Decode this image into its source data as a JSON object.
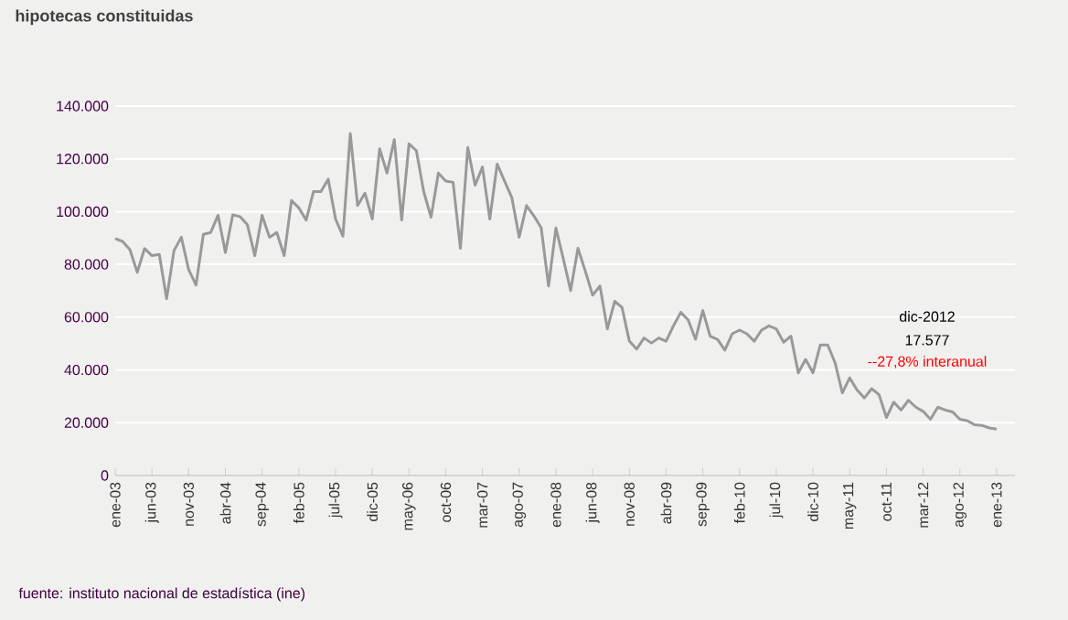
{
  "chart_data": {
    "type": "line",
    "title": "hipotecas constituidas",
    "categories": [
      "ene-03",
      null,
      null,
      null,
      null,
      "jun-03",
      null,
      null,
      null,
      null,
      "nov-03",
      null,
      null,
      null,
      null,
      "abr-04",
      null,
      null,
      null,
      null,
      "sep-04",
      null,
      null,
      null,
      null,
      "feb-05",
      null,
      null,
      null,
      null,
      "jul-05",
      null,
      null,
      null,
      null,
      "dic-05",
      null,
      null,
      null,
      null,
      "may-06",
      null,
      null,
      null,
      null,
      "oct-06",
      null,
      null,
      null,
      null,
      "mar-07",
      null,
      null,
      null,
      null,
      "ago-07",
      null,
      null,
      null,
      null,
      "ene-08",
      null,
      null,
      null,
      null,
      "jun-08",
      null,
      null,
      null,
      null,
      "nov-08",
      null,
      null,
      null,
      null,
      "abr-09",
      null,
      null,
      null,
      null,
      "sep-09",
      null,
      null,
      null,
      null,
      "feb-10",
      null,
      null,
      null,
      null,
      "jul-10",
      null,
      null,
      null,
      null,
      "dic-10",
      null,
      null,
      null,
      null,
      "may-11",
      null,
      null,
      null,
      null,
      "oct-11",
      null,
      null,
      null,
      null,
      "mar-12",
      null,
      null,
      null,
      null,
      "ago-12",
      null,
      null,
      null,
      null,
      "ene-13"
    ],
    "series": [
      {
        "color": "#999999",
        "values": [
          89800,
          88700,
          85600,
          77000,
          86000,
          83300,
          83800,
          67000,
          85200,
          90300,
          78000,
          72200,
          91400,
          92100,
          98600,
          84500,
          98800,
          98100,
          95000,
          83300,
          98600,
          90300,
          92100,
          83300,
          104200,
          101400,
          96800,
          107600,
          107600,
          112300,
          97200,
          90700,
          129600,
          102300,
          107000,
          97200,
          123800,
          114600,
          127300,
          96800,
          125700,
          123100,
          107600,
          97900,
          114600,
          111600,
          111100,
          86100,
          124300,
          110000,
          116900,
          97200,
          118000,
          111600,
          105300,
          90300,
          102300,
          98400,
          93800,
          71800,
          93800,
          82200,
          70100,
          86100,
          77500,
          68300,
          71800,
          55600,
          66000,
          63700,
          50900,
          47900,
          52100,
          50200,
          52100,
          50900,
          56700,
          61800,
          59000,
          51600,
          62500,
          52800,
          51600,
          47500,
          53700,
          55100,
          53700,
          50900,
          55100,
          56700,
          55600,
          50500,
          52800,
          38900,
          44000,
          38900,
          49500,
          49500,
          42800,
          31300,
          37000,
          32400,
          29400,
          32900,
          30600,
          22000,
          27800,
          24800,
          28500,
          25900,
          24300,
          21300,
          25900,
          24800,
          24100,
          21300,
          20800,
          19200,
          19000,
          18000,
          17577
        ]
      }
    ],
    "ylim": [
      0,
      140000
    ],
    "yticks": [
      0,
      {
        "value": 20000,
        "label": "20.000"
      },
      {
        "value": 40000,
        "label": "40.000"
      },
      {
        "value": 60000,
        "label": "60.000"
      },
      {
        "value": 80000,
        "label": "80.000"
      },
      {
        "value": 100000,
        "label": "100.000"
      },
      {
        "value": 120000,
        "label": "120.000"
      },
      {
        "value": 140000,
        "label": "140.000"
      }
    ],
    "grid": "y",
    "marker": "none",
    "line_style": "solid",
    "annotations": [
      "dic-2012",
      "17.577",
      "--27,8% interanual",
      "fuente: instituto nacional de estadística (ine)"
    ]
  }
}
